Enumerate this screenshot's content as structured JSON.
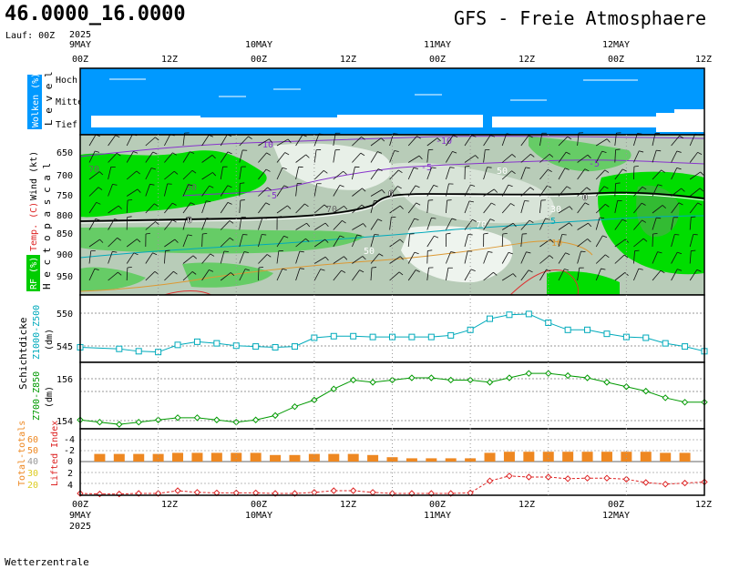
{
  "header": {
    "coords": "46.0000_16.0000",
    "model_title": "GFS - Freie Atmosphaere",
    "run": "Lauf: 00Z",
    "year": "2025"
  },
  "footer": {
    "credit": "Wetterzentrale"
  },
  "time_axis": {
    "labels": [
      "00Z",
      "12Z",
      "00Z",
      "12Z",
      "00Z",
      "12Z",
      "00Z",
      "12Z"
    ],
    "dates": [
      "9MAY",
      "10MAY",
      "11MAY",
      "12MAY"
    ],
    "year": "2025"
  },
  "colors": {
    "frame": "#000000",
    "clouds_bg": "#0099ff",
    "rh_bright": "#00dd00",
    "rh_mid": "#66cc66",
    "rh_pale": "#b8ccb8",
    "thickness_cyan": "#00aabb",
    "thickness_green": "#009900",
    "total_totals": "#ee8822",
    "lifted_index": "#dd2222",
    "isotherm_purple": "#8833cc",
    "isotherm_orange": "#dd9933",
    "isotherm_red": "#dd3333"
  },
  "panels": {
    "clouds": {
      "label_wolken": "Wolken (%)",
      "label_level": "L e v e l",
      "levels": [
        "Hoch",
        "Mittel",
        "Tief"
      ]
    },
    "atmosphere": {
      "label_hectopascal": "H e c t o p a s c a l",
      "label_wind": "Wind (kt)",
      "label_temp": "Temp. (C)",
      "label_rh": "RF (%)",
      "pressure_levels": [
        "850",
        "800",
        "750",
        "700",
        "650",
        "900",
        "950"
      ],
      "contour_labels": [
        "-10",
        "-10",
        "-5",
        "-5",
        "-5",
        "70",
        "70",
        "50",
        "5",
        "10",
        "50",
        "30",
        "70",
        "30",
        "0",
        "0",
        "0"
      ]
    },
    "z500": {
      "label_top": "Z1000-Z500",
      "label_unit": "(dm)",
      "side_label": "Schichtdicke",
      "ticks": [
        "550",
        "545"
      ]
    },
    "z850": {
      "label": "Z700-Z850",
      "label_unit": "(dm)",
      "ticks": [
        "156",
        "154"
      ]
    },
    "indices": {
      "label_tt": "Total-totals",
      "label_li": "Lifted Index",
      "tt_ticks": [
        "60",
        "50",
        "40",
        "30",
        "20"
      ],
      "li_ticks": [
        "-4",
        "-2",
        "0",
        "2",
        "4"
      ]
    }
  },
  "chart_data": [
    {
      "type": "line",
      "title": "Z1000-Z500",
      "ylabel": "(dm)",
      "x_hours": [
        0,
        6,
        9,
        12,
        15,
        18,
        21,
        24,
        27,
        30,
        33,
        36,
        39,
        42,
        45,
        48,
        51,
        54,
        57,
        60,
        63,
        66,
        69,
        72,
        75,
        78,
        81,
        84,
        87,
        90,
        93,
        96
      ],
      "values": [
        545.4,
        545.2,
        544.9,
        544.8,
        545.7,
        546.1,
        545.9,
        545.6,
        545.5,
        545.4,
        545.5,
        546.6,
        546.8,
        546.8,
        546.7,
        546.7,
        546.7,
        546.7,
        546.9,
        547.6,
        549.0,
        549.5,
        549.6,
        548.5,
        547.6,
        547.6,
        547.1,
        546.7,
        546.6,
        545.9,
        545.5,
        544.9
      ],
      "ylim": [
        543.5,
        552.0
      ],
      "yticks": [
        545,
        550
      ]
    },
    {
      "type": "line",
      "title": "Z700-Z850",
      "ylabel": "(dm)",
      "x_hours": [
        0,
        3,
        6,
        9,
        12,
        15,
        18,
        21,
        24,
        27,
        30,
        33,
        36,
        39,
        42,
        45,
        48,
        51,
        54,
        57,
        60,
        63,
        66,
        69,
        72,
        75,
        78,
        81,
        84,
        87,
        90,
        93,
        96
      ],
      "values": [
        154.0,
        153.9,
        153.8,
        153.9,
        154.0,
        154.1,
        154.1,
        154.0,
        153.9,
        154.0,
        154.2,
        154.6,
        154.9,
        155.4,
        155.8,
        155.7,
        155.8,
        155.9,
        155.9,
        155.8,
        155.8,
        155.7,
        155.9,
        156.1,
        156.1,
        156.0,
        155.9,
        155.7,
        155.5,
        155.3,
        155.0,
        154.8,
        154.8
      ],
      "ylim": [
        153.6,
        156.6
      ],
      "yticks": [
        154,
        156
      ]
    },
    {
      "type": "bar",
      "title": "Total-totals",
      "x_hours": [
        0,
        3,
        6,
        9,
        12,
        15,
        18,
        21,
        24,
        27,
        30,
        33,
        36,
        39,
        42,
        45,
        48,
        51,
        54,
        57,
        60,
        63,
        66,
        69,
        72,
        75,
        78,
        81,
        84,
        87,
        90,
        93,
        96
      ],
      "values": [
        47,
        47,
        47,
        47,
        47,
        48,
        48,
        48,
        48,
        48,
        46,
        46,
        47,
        47,
        47,
        46,
        44,
        43,
        43,
        43,
        43,
        48,
        49,
        49,
        49,
        49,
        49,
        49,
        49,
        49,
        48,
        48,
        48
      ],
      "ylim": [
        20,
        60
      ]
    },
    {
      "type": "line",
      "title": "Lifted Index",
      "x_hours": [
        0,
        3,
        6,
        9,
        12,
        15,
        18,
        21,
        24,
        27,
        30,
        33,
        36,
        39,
        42,
        45,
        48,
        51,
        54,
        57,
        60,
        63,
        66,
        69,
        72,
        75,
        78,
        81,
        84,
        87,
        90,
        93,
        96
      ],
      "values": [
        4.5,
        4.6,
        4.6,
        4.5,
        4.5,
        4.0,
        4.3,
        4.4,
        4.4,
        4.4,
        4.5,
        4.5,
        4.3,
        4.0,
        4.0,
        4.3,
        4.5,
        4.5,
        4.5,
        4.5,
        4.4,
        2.2,
        1.3,
        1.5,
        1.5,
        1.8,
        1.7,
        1.7,
        1.9,
        2.5,
        2.8,
        2.6,
        2.4
      ],
      "ylim": [
        5,
        -5
      ]
    }
  ]
}
